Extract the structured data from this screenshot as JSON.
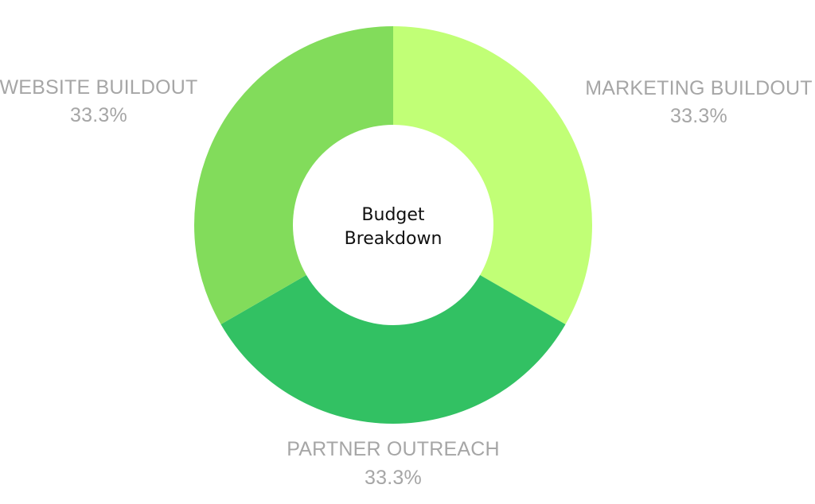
{
  "chart_data": {
    "type": "pie",
    "variant": "donut",
    "center_label": [
      "Budget",
      "Breakdown"
    ],
    "categories": [
      "MARKETING BUILDOUT",
      "PARTNER OUTREACH",
      "WEBSITE BUILDOUT"
    ],
    "values": [
      33.3,
      33.3,
      33.3
    ],
    "value_labels": [
      "33.3%",
      "33.3%",
      "33.3%"
    ],
    "colors": [
      "#c1ff76",
      "#32c163",
      "#82dc5b"
    ],
    "start_angle_deg": 0,
    "direction": "clockwise",
    "legend": "none"
  }
}
